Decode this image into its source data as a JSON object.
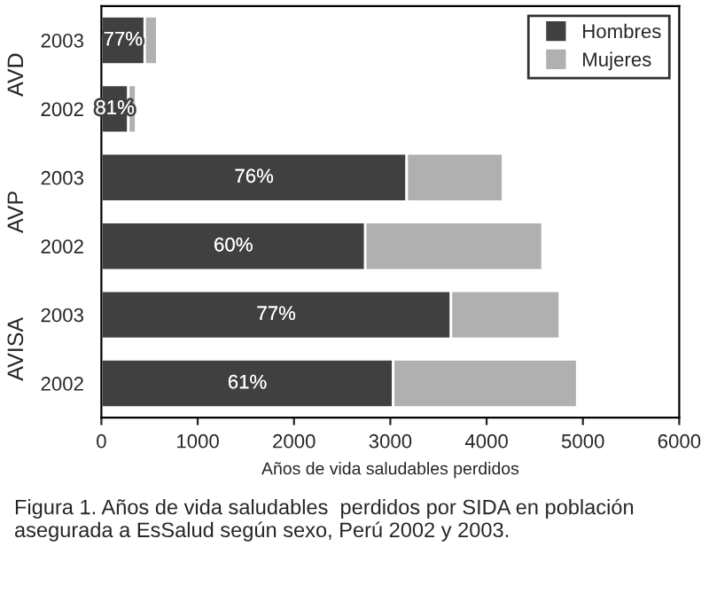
{
  "chart_data": {
    "type": "bar",
    "orientation": "horizontal",
    "stacked": true,
    "categories": [
      "2003",
      "2002",
      "2003",
      "2002",
      "2003",
      "2002"
    ],
    "series": [
      {
        "name": "Hombres",
        "color": "#404040",
        "values": [
          450,
          280,
          3170,
          2740,
          3630,
          3030
        ]
      },
      {
        "name": "Mujeres",
        "color": "#b0b0b0",
        "values": [
          130,
          80,
          1000,
          1840,
          1130,
          1910
        ]
      }
    ],
    "xlabel": "Años de vida saludables perdidos",
    "xlim": [
      0,
      6000
    ],
    "xticks": [
      0,
      1000,
      2000,
      3000,
      4000,
      5000,
      6000
    ],
    "legend": "top right",
    "grid": false,
    "annotations": [
      "AVD",
      "AVP",
      "AVISA",
      "77%",
      "81%",
      "76%",
      "60%",
      "77%",
      "61%",
      "Figura 1. Años de vida saludables  perdidos por SIDA en población asegurada a EsSalud según sexo, Perú 2002 y 2003."
    ]
  }
}
